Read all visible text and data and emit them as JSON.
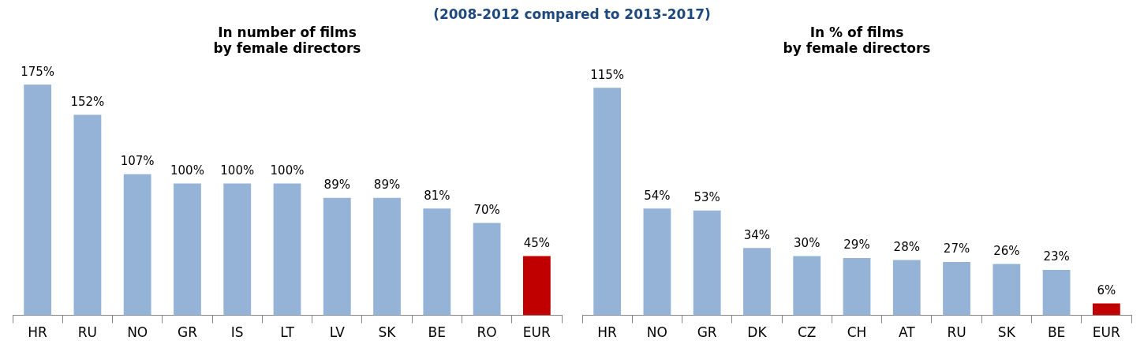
{
  "chart_data": [
    {
      "type": "other",
      "title": "(2008-2012 compared to 2013-2017)"
    },
    {
      "type": "bar",
      "title": [
        "In number of films",
        "by female directors"
      ],
      "categories": [
        "HR",
        "RU",
        "NO",
        "GR",
        "IS",
        "LT",
        "LV",
        "SK",
        "BE",
        "RO",
        "EUR"
      ],
      "values": [
        175,
        152,
        107,
        100,
        100,
        100,
        89,
        89,
        81,
        70,
        45
      ],
      "colors": [
        "#95b3d7",
        "#95b3d7",
        "#95b3d7",
        "#95b3d7",
        "#95b3d7",
        "#95b3d7",
        "#95b3d7",
        "#95b3d7",
        "#95b3d7",
        "#95b3d7",
        "#c00000"
      ],
      "value_labels": [
        "175%",
        "152%",
        "107%",
        "100%",
        "100%",
        "100%",
        "89%",
        "89%",
        "81%",
        "70%",
        "45%"
      ],
      "tick_labels": "x",
      "grid": false,
      "legend": false
    },
    {
      "type": "bar",
      "title": [
        "In % of films",
        "by female directors"
      ],
      "categories": [
        "HR",
        "NO",
        "GR",
        "DK",
        "CZ",
        "CH",
        "AT",
        "RU",
        "SK",
        "BE",
        "EUR"
      ],
      "values": [
        115,
        54,
        53,
        34,
        30,
        29,
        28,
        27,
        26,
        23,
        6
      ],
      "colors": [
        "#95b3d7",
        "#95b3d7",
        "#95b3d7",
        "#95b3d7",
        "#95b3d7",
        "#95b3d7",
        "#95b3d7",
        "#95b3d7",
        "#95b3d7",
        "#95b3d7",
        "#c00000"
      ],
      "value_labels": [
        "115%",
        "54%",
        "53%",
        "34%",
        "30%",
        "29%",
        "28%",
        "27%",
        "26%",
        "23%",
        "6%"
      ],
      "tick_labels": "x",
      "grid": false,
      "legend": false
    }
  ]
}
